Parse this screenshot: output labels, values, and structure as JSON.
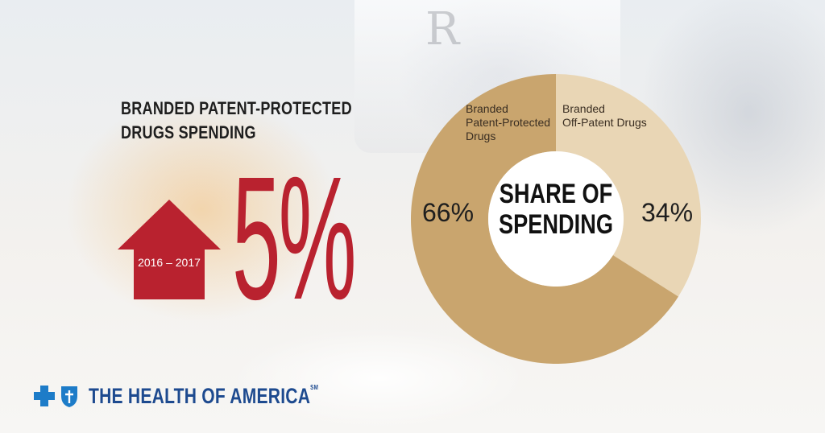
{
  "headline": {
    "line1": "BRANDED PATENT-PROTECTED",
    "line2": "DRUGS SPENDING"
  },
  "change": {
    "period": "2016 – 2017",
    "value": "5%",
    "direction": "up",
    "arrow_color": "#b9222f"
  },
  "chart_data": {
    "type": "pie",
    "title": "SHARE OF SPENDING",
    "title_lines": [
      "SHARE OF",
      "SPENDING"
    ],
    "style": "donut",
    "categories": [
      "Branded Patent-Protected Drugs",
      "Branded Off-Patent Drugs"
    ],
    "category_lines": [
      [
        "Branded",
        "Patent-Protected",
        "Drugs"
      ],
      [
        "Branded",
        "Off-Patent Drugs"
      ]
    ],
    "values": [
      66,
      34
    ],
    "value_labels": [
      "66%",
      "34%"
    ],
    "colors": [
      "#c9a56e",
      "#e9d6b5"
    ],
    "legend": "none"
  },
  "background": {
    "rx_mark": "R"
  },
  "brand": {
    "name": "THE HEALTH OF AMERICA",
    "mark": "SM",
    "color": "#1d4a8f"
  }
}
